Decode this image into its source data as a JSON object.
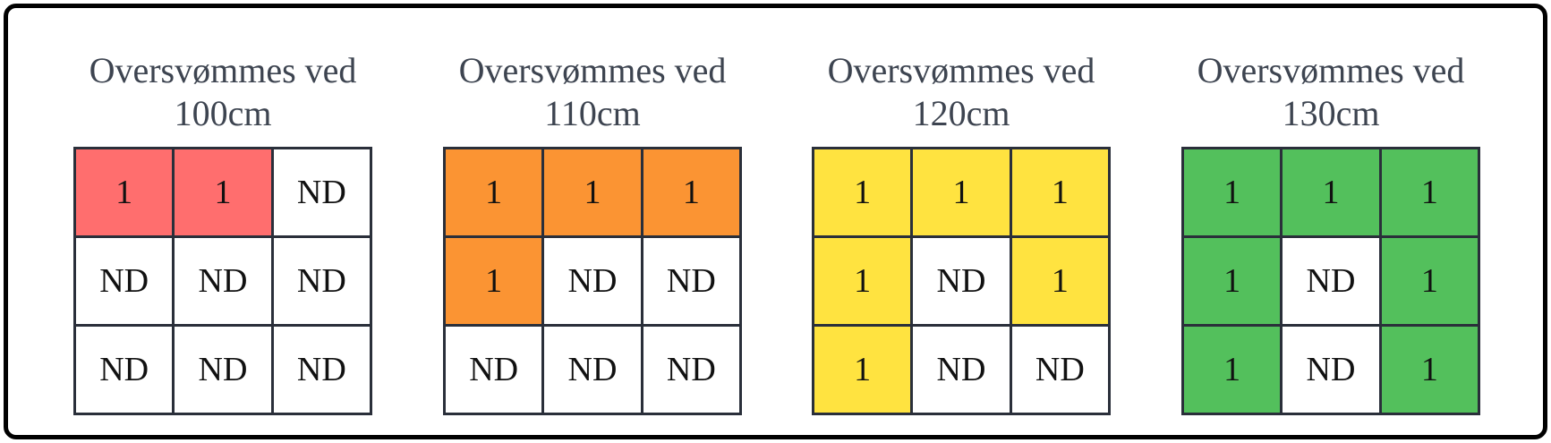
{
  "colors": {
    "frame": "#000000",
    "grid_line": "#2a2f3a",
    "title_text": "#3d4450",
    "empty_cell": "#ffffff"
  },
  "panels": [
    {
      "title_line1": "Oversvømmes ved",
      "title_line2": "100cm",
      "fill_color": "#ff6e6e",
      "cells": [
        [
          "1",
          "1",
          "ND"
        ],
        [
          "ND",
          "ND",
          "ND"
        ],
        [
          "ND",
          "ND",
          "ND"
        ]
      ]
    },
    {
      "title_line1": "Oversvømmes ved",
      "title_line2": "110cm",
      "fill_color": "#fb9433",
      "cells": [
        [
          "1",
          "1",
          "1"
        ],
        [
          "1",
          "ND",
          "ND"
        ],
        [
          "ND",
          "ND",
          "ND"
        ]
      ]
    },
    {
      "title_line1": "Oversvømmes ved",
      "title_line2": "120cm",
      "fill_color": "#ffe340",
      "cells": [
        [
          "1",
          "1",
          "1"
        ],
        [
          "1",
          "ND",
          "1"
        ],
        [
          "1",
          "ND",
          "ND"
        ]
      ]
    },
    {
      "title_line1": "Oversvømmes ved",
      "title_line2": "130cm",
      "fill_color": "#53c05c",
      "cells": [
        [
          "1",
          "1",
          "1"
        ],
        [
          "1",
          "ND",
          "1"
        ],
        [
          "1",
          "ND",
          "1"
        ]
      ]
    }
  ]
}
